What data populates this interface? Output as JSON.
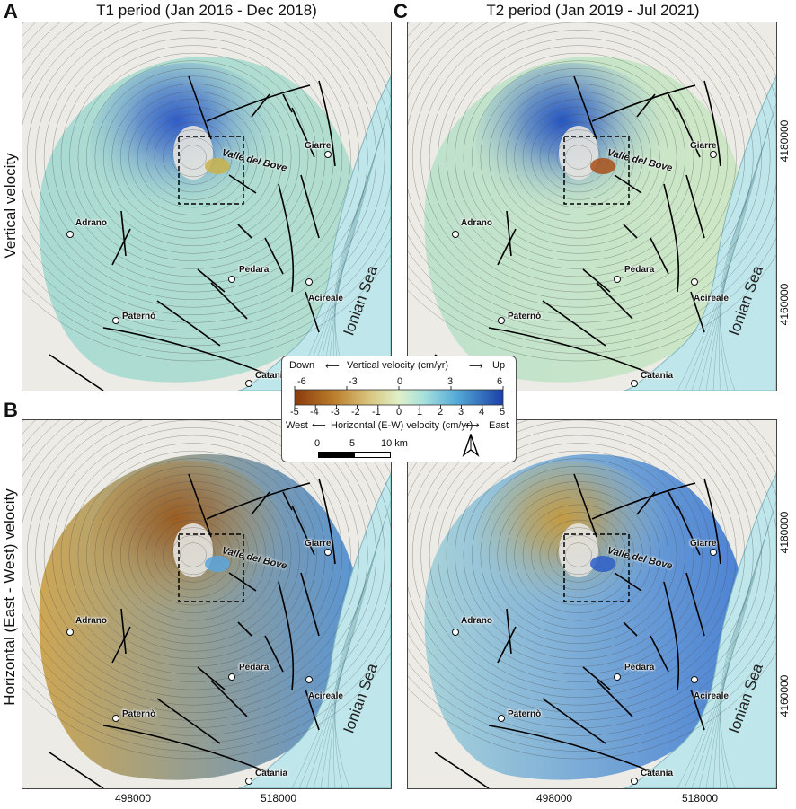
{
  "panels": [
    {
      "letter": "A",
      "row": "vertical",
      "period": "T1"
    },
    {
      "letter": "C",
      "row": "vertical",
      "period": "T2"
    },
    {
      "letter": "B",
      "row": "horizontal",
      "period": "T1"
    },
    {
      "letter": "D",
      "row": "horizontal",
      "period": "T2"
    }
  ],
  "letters": {
    "A": "A",
    "B": "B",
    "C": "C",
    "D": "D"
  },
  "period_titles": {
    "t1": "T1 period (Jan 2016 - Dec 2018)",
    "t2": "T2 period (Jan 2019 - Jul 2021)"
  },
  "row_labels": {
    "vertical": "Vertical velocity",
    "horizontal": "Horizontal (East - West) velocity"
  },
  "axes": {
    "x_ticks": [
      "498000",
      "518000"
    ],
    "y_ticks": [
      "4180000",
      "4160000"
    ]
  },
  "towns": [
    "Giarre",
    "Adrano",
    "Pedara",
    "Acireale",
    "Paternò",
    "Catania"
  ],
  "map_labels": {
    "valle": "Valle del Bove",
    "sea": "Ionian Sea"
  },
  "legend": {
    "vertical": {
      "down": "Down",
      "up": "Up",
      "title": "Vertical velocity (cm/yr)",
      "ticks": [
        "-6",
        "-3",
        "0",
        "3",
        "6"
      ]
    },
    "horizontal": {
      "west": "West",
      "east": "East",
      "title": "Horizontal (E-W) velocity (cm/yr)",
      "ticks": [
        "-5",
        "-4",
        "-3",
        "-2",
        "-1",
        "0",
        "1",
        "2",
        "3",
        "4",
        "5"
      ]
    },
    "scale": {
      "ticks": [
        "0",
        "5",
        "10 km"
      ]
    },
    "north_symbol": "north-arrow",
    "colors": {
      "negative": "#8a4a12",
      "neutral": "#d8ecd0",
      "positive": "#1a3fa8"
    }
  }
}
